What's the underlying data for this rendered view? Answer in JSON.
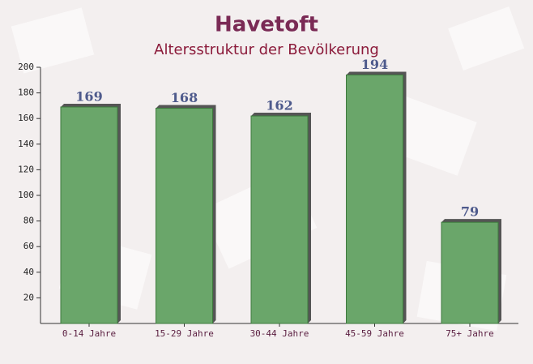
{
  "chart_data": {
    "type": "bar",
    "title": "Havetoft",
    "subtitle": "Altersstruktur der Bevölkerung",
    "categories": [
      "0-14 Jahre",
      "15-29 Jahre",
      "30-44 Jahre",
      "45-59 Jahre",
      "75+ Jahre"
    ],
    "values": [
      169,
      168,
      162,
      194,
      79
    ],
    "color": "#6aa66a",
    "ylim": [
      0,
      200
    ],
    "yticks": [
      20,
      40,
      60,
      80,
      100,
      120,
      140,
      160,
      180,
      200
    ]
  }
}
